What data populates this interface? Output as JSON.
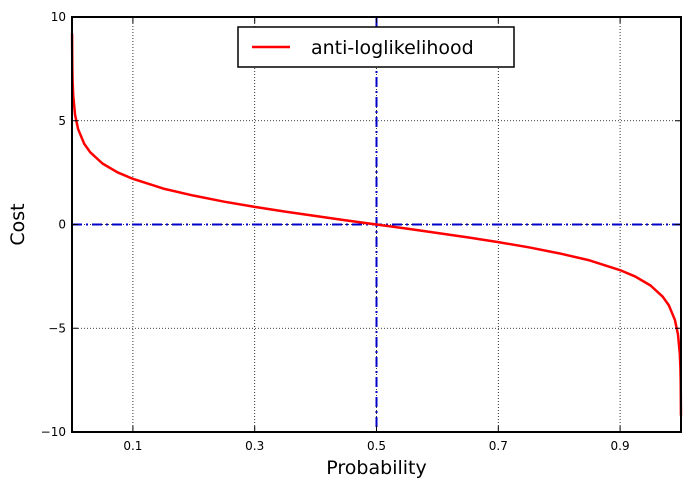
{
  "chart_data": {
    "type": "line",
    "title": "",
    "xlabel": "Probability",
    "ylabel": "Cost",
    "xlim": [
      0,
      1
    ],
    "ylim": [
      -10,
      10
    ],
    "x_ticks": [
      0.1,
      0.3,
      0.5,
      0.7,
      0.9
    ],
    "x_tick_labels": [
      "0.1",
      "0.3",
      "0.5",
      "0.7",
      "0.9"
    ],
    "y_ticks": [
      -10,
      -5,
      0,
      5,
      10
    ],
    "y_tick_labels": [
      "−10",
      "−5",
      "0",
      "5",
      "10"
    ],
    "grid": true,
    "legend_position": "top-center",
    "series": [
      {
        "name": "anti-loglikelihood",
        "color": "#ff0000",
        "style": "solid",
        "x": [
          0.0001,
          0.0005,
          0.001,
          0.002,
          0.005,
          0.01,
          0.02,
          0.03,
          0.05,
          0.075,
          0.1,
          0.15,
          0.2,
          0.25,
          0.3,
          0.35,
          0.4,
          0.45,
          0.5,
          0.55,
          0.6,
          0.65,
          0.7,
          0.75,
          0.8,
          0.85,
          0.9,
          0.925,
          0.95,
          0.97,
          0.98,
          0.99,
          0.995,
          0.998,
          0.999,
          0.9995,
          0.9999
        ],
        "y": [
          9.21,
          7.6,
          6.91,
          6.21,
          5.29,
          4.6,
          3.89,
          3.48,
          2.94,
          2.51,
          2.2,
          1.73,
          1.39,
          1.1,
          0.85,
          0.62,
          0.41,
          0.2,
          0.0,
          -0.2,
          -0.41,
          -0.62,
          -0.85,
          -1.1,
          -1.39,
          -1.73,
          -2.2,
          -2.51,
          -2.94,
          -3.48,
          -3.89,
          -4.6,
          -5.29,
          -6.21,
          -6.91,
          -7.6,
          -9.21
        ]
      }
    ],
    "reference_lines": [
      {
        "orientation": "horizontal",
        "value": 0,
        "color": "#0000c8",
        "style": "dash-dot"
      },
      {
        "orientation": "vertical",
        "value": 0.5,
        "color": "#0000c8",
        "style": "dash-dot"
      }
    ]
  }
}
